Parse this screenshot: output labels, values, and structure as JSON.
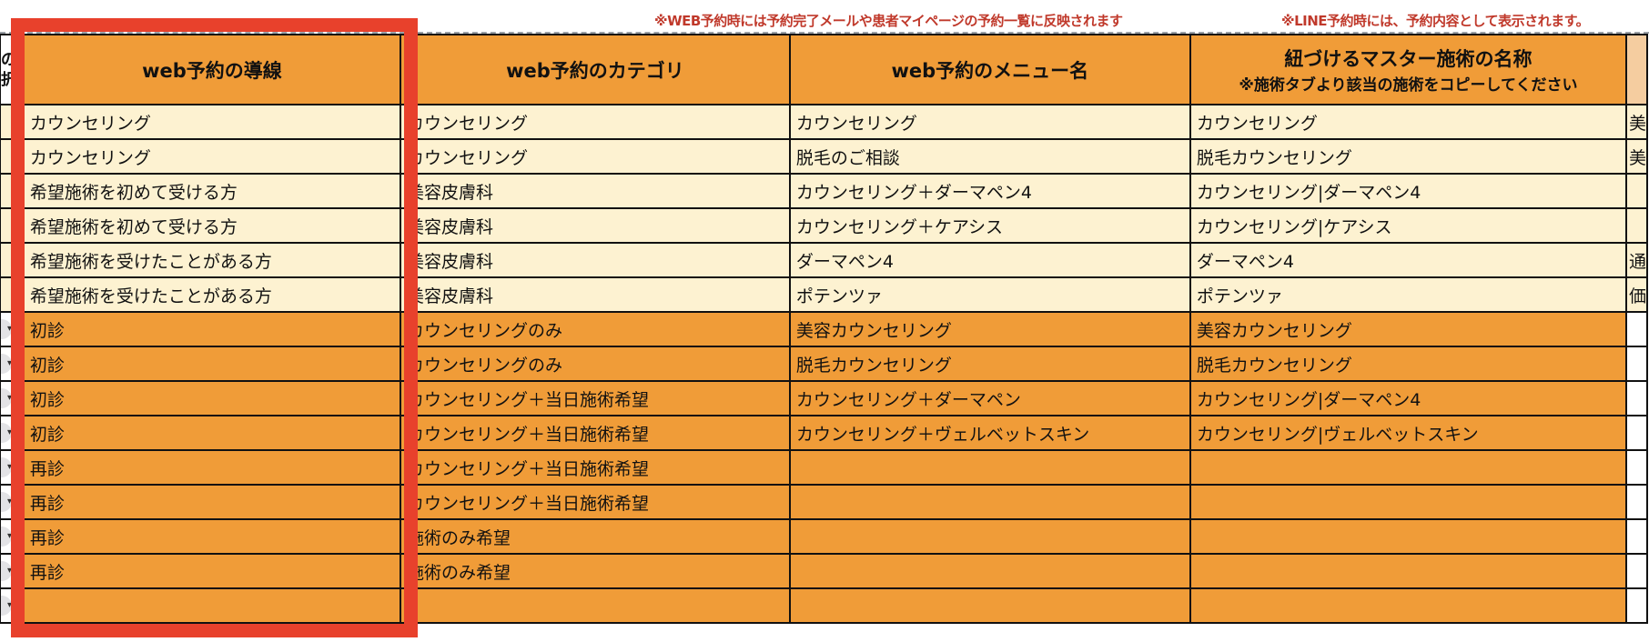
{
  "notes": {
    "web": "※WEB予約時には予約完了メールや患者マイページの予約一覧に反映されます",
    "line": "※LINE予約時には、予約内容として表示されます。"
  },
  "colors": {
    "header": "#f09c38",
    "light_row": "#fdf2d1",
    "highlight_box": "#e8412c",
    "note": "#c0392b"
  },
  "table": {
    "left_edge_header": "の\n択",
    "headers": [
      {
        "title": "web予約の導線",
        "sub": ""
      },
      {
        "title": "web予約のカテゴリ",
        "sub": ""
      },
      {
        "title": "web予約のメニュー名",
        "sub": ""
      },
      {
        "title": "紐づけるマスター施術の名称",
        "sub": "※施術タブより該当の施術をコピーしてください"
      }
    ],
    "rows": [
      {
        "style": "light",
        "cells": [
          "カウンセリング",
          "カウンセリング",
          "カウンセリング",
          "カウンセリング"
        ],
        "right": "美"
      },
      {
        "style": "light",
        "cells": [
          "カウンセリング",
          "カウンセリング",
          "脱毛のご相談",
          "脱毛カウンセリング"
        ],
        "right": "美"
      },
      {
        "style": "light",
        "cells": [
          "希望施術を初めて受ける方",
          "美容皮膚科",
          "カウンセリング＋ダーマペン4",
          "カウンセリング|ダーマペン4"
        ],
        "right": ""
      },
      {
        "style": "light",
        "cells": [
          "希望施術を初めて受ける方",
          "美容皮膚科",
          "カウンセリング＋ケアシス",
          "カウンセリング|ケアシス"
        ],
        "right": ""
      },
      {
        "style": "light",
        "cells": [
          "希望施術を受けたことがある方",
          "美容皮膚科",
          "ダーマペン4",
          "ダーマペン4"
        ],
        "right": "通"
      },
      {
        "style": "light",
        "cells": [
          "希望施術を受けたことがある方",
          "美容皮膚科",
          "ポテンツァ",
          "ポテンツァ"
        ],
        "right": "価"
      },
      {
        "style": "orange",
        "cells": [
          "初診",
          "カウンセリングのみ",
          "美容カウンセリング",
          "美容カウンセリング"
        ],
        "right": ""
      },
      {
        "style": "orange",
        "cells": [
          "初診",
          "カウンセリングのみ",
          "脱毛カウンセリング",
          "脱毛カウンセリング"
        ],
        "right": ""
      },
      {
        "style": "orange",
        "cells": [
          "初診",
          "カウンセリング＋当日施術希望",
          "カウンセリング＋ダーマペン",
          "カウンセリング|ダーマペン4"
        ],
        "right": ""
      },
      {
        "style": "orange",
        "cells": [
          "初診",
          "カウンセリング＋当日施術希望",
          "カウンセリング＋ヴェルベットスキン",
          "カウンセリング|ヴェルベットスキン"
        ],
        "right": ""
      },
      {
        "style": "orange",
        "cells": [
          "再診",
          "カウンセリング＋当日施術希望",
          "",
          ""
        ],
        "right": ""
      },
      {
        "style": "orange",
        "cells": [
          "再診",
          "カウンセリング＋当日施術希望",
          "",
          ""
        ],
        "right": ""
      },
      {
        "style": "orange",
        "cells": [
          "再診",
          "施術のみ希望",
          "",
          ""
        ],
        "right": ""
      },
      {
        "style": "orange",
        "cells": [
          "再診",
          "施術のみ希望",
          "",
          ""
        ],
        "right": ""
      },
      {
        "style": "orange",
        "cells": [
          "",
          "",
          "",
          ""
        ],
        "right": ""
      }
    ]
  }
}
